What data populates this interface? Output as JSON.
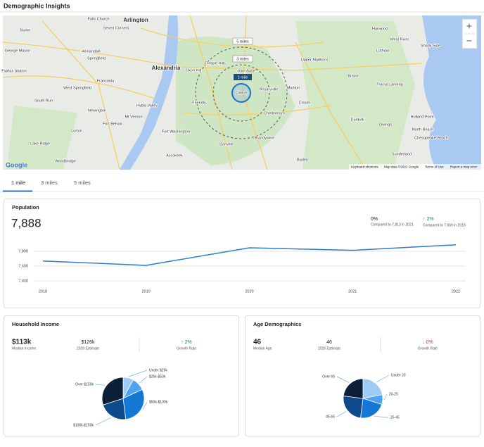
{
  "title": "Demographic Insights",
  "map": {
    "labels": [
      "Falls Church",
      "Arlington",
      "Seven Corners",
      "Annandale",
      "Springfield",
      "Franconia",
      "West Springfield",
      "Alexandria",
      "Oxon Hill",
      "Temple Hills",
      "Joint Base",
      "Clinton",
      "Rosaryville",
      "Marlton",
      "Croom",
      "Friendly",
      "Fort Washington",
      "Accokeek",
      "Cheltenham",
      "Brandywine",
      "Danville",
      "Hybla Valley",
      "Mt Vernon",
      "Newington",
      "Fort Belvoir",
      "Lorton",
      "Lake Ridge",
      "Woodbridge",
      "Upper Marlboro",
      "Bristol",
      "Lothian",
      "Harwood",
      "West River",
      "Shady Side",
      "Tracys Landing",
      "Holland Point",
      "Owings",
      "North Beach",
      "Chesapeake Beach",
      "Dunkirk",
      "Sunderland",
      "Baden",
      "Burke",
      "George Mason",
      "Fairfax Station",
      "South Run"
    ],
    "radii": [
      "5 miles",
      "3 miles",
      "1 mile"
    ],
    "zoom_in": "+",
    "zoom_out": "−",
    "logo": "Google",
    "footer": [
      "Keyboard shortcuts",
      "Map data ©2022 Google",
      "Terms of Use",
      "Report a map error"
    ]
  },
  "tabs": [
    "1 mile",
    "3 miles",
    "5 miles"
  ],
  "population": {
    "title": "Population",
    "value": "7,888",
    "comparisons": [
      {
        "change": "0%",
        "note": "Compared to 7,813 in 2021"
      },
      {
        "change": "↑ 2%",
        "note": "Compared to 7,669 in 2018"
      }
    ],
    "chart": {
      "type": "line",
      "categories": [
        "2018",
        "2019",
        "2020",
        "2021",
        "2022"
      ],
      "values": [
        7669,
        7610,
        7848,
        7813,
        7888
      ],
      "color": "#2a7fc9",
      "ylim": [
        7400,
        7900
      ],
      "yticks": [
        {
          "value": 7400,
          "label": "7,400"
        },
        {
          "value": 7600,
          "label": "7,600"
        },
        {
          "value": 7800,
          "label": "7,800"
        }
      ],
      "grid": true
    }
  },
  "household_income": {
    "title": "Household Income",
    "stats": [
      {
        "value": "$113k",
        "label": "Median Income"
      },
      {
        "value": "$126k",
        "label": "2026 Estimate"
      },
      {
        "value": "↑ 2%",
        "label": "Growth Rate"
      }
    ],
    "chart": {
      "type": "pie",
      "categories": [
        "Under $25k",
        "$25k-$50k",
        "$50k-$100k",
        "$100k-$150k",
        "Over $150k"
      ],
      "values": [
        8,
        10,
        30,
        22,
        30
      ],
      "colors": [
        "#9ccbf5",
        "#4da3f0",
        "#1477d6",
        "#0e4a8a",
        "#0b1f36"
      ]
    }
  },
  "age": {
    "title": "Age Demographics",
    "stats": [
      {
        "value": "46",
        "label": "Median Age"
      },
      {
        "value": "46",
        "label": "2026 Estimate"
      },
      {
        "value": "↓ 0%",
        "label": "Growth Rate"
      }
    ],
    "chart": {
      "type": "pie",
      "categories": [
        "Under 20",
        "20-25",
        "25-45",
        "45-65",
        "Over 65"
      ],
      "values": [
        22,
        8,
        22,
        25,
        23
      ],
      "colors": [
        "#9ccbf5",
        "#4da3f0",
        "#1477d6",
        "#0e4a8a",
        "#0b1f36"
      ]
    }
  }
}
